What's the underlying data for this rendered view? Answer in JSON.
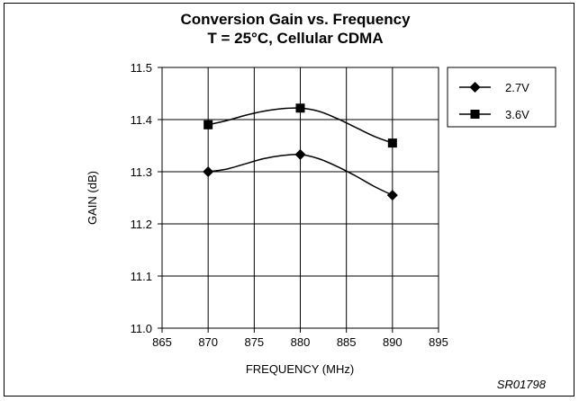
{
  "chart_data": {
    "type": "line",
    "title": "Conversion Gain vs. Frequency",
    "subtitle": "T = 25°C, Cellular CDMA",
    "xlabel": "FREQUENCY (MHz)",
    "ylabel": "GAIN (dB)",
    "xlim": [
      865,
      895
    ],
    "ylim": [
      11.0,
      11.5
    ],
    "xticks": [
      "865",
      "870",
      "875",
      "880",
      "885",
      "890",
      "895"
    ],
    "yticks": [
      "11.0",
      "11.1",
      "11.2",
      "11.3",
      "11.4",
      "11.5"
    ],
    "grid": true,
    "legend_position": "right",
    "series": [
      {
        "name": "2.7V",
        "marker": "diamond",
        "x": [
          870,
          880,
          890
        ],
        "y": [
          11.3,
          11.333,
          11.255
        ],
        "curve": [
          [
            870,
            11.3
          ],
          [
            872,
            11.305
          ],
          [
            874,
            11.315
          ],
          [
            876,
            11.325
          ],
          [
            878,
            11.331
          ],
          [
            880,
            11.333
          ],
          [
            882,
            11.325
          ],
          [
            884,
            11.31
          ],
          [
            886,
            11.292
          ],
          [
            888,
            11.272
          ],
          [
            890,
            11.255
          ]
        ]
      },
      {
        "name": "3.6V",
        "marker": "square",
        "x": [
          870,
          880,
          890
        ],
        "y": [
          11.39,
          11.422,
          11.355
        ],
        "curve": [
          [
            870,
            11.39
          ],
          [
            872,
            11.398
          ],
          [
            874,
            11.408
          ],
          [
            876,
            11.416
          ],
          [
            878,
            11.421
          ],
          [
            880,
            11.422
          ],
          [
            882,
            11.416
          ],
          [
            884,
            11.402
          ],
          [
            886,
            11.385
          ],
          [
            888,
            11.368
          ],
          [
            890,
            11.355
          ]
        ]
      }
    ],
    "figure_code": "SR01798"
  }
}
